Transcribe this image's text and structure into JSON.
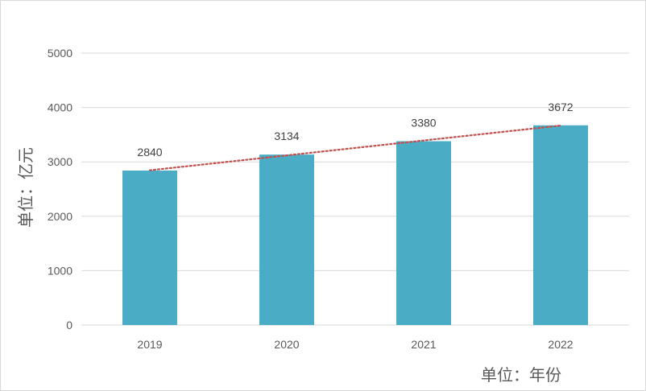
{
  "chart_data": {
    "type": "bar",
    "categories": [
      "2019",
      "2020",
      "2021",
      "2022"
    ],
    "values": [
      2840,
      3134,
      3380,
      3672
    ],
    "data_labels": [
      "2840",
      "3134",
      "3380",
      "3672"
    ],
    "y_ticks": [
      "0",
      "1000",
      "2000",
      "3000",
      "4000",
      "5000"
    ],
    "ylim": [
      0,
      5000
    ],
    "ylabel": "单位：亿元",
    "xlabel": "单位：年份",
    "title": "",
    "grid": true,
    "trendline": {
      "type": "linear",
      "style": "dotted"
    },
    "colors": {
      "bar": "#4bacc6",
      "trendline": "#c0504d",
      "grid": "#d9d9d9"
    }
  }
}
